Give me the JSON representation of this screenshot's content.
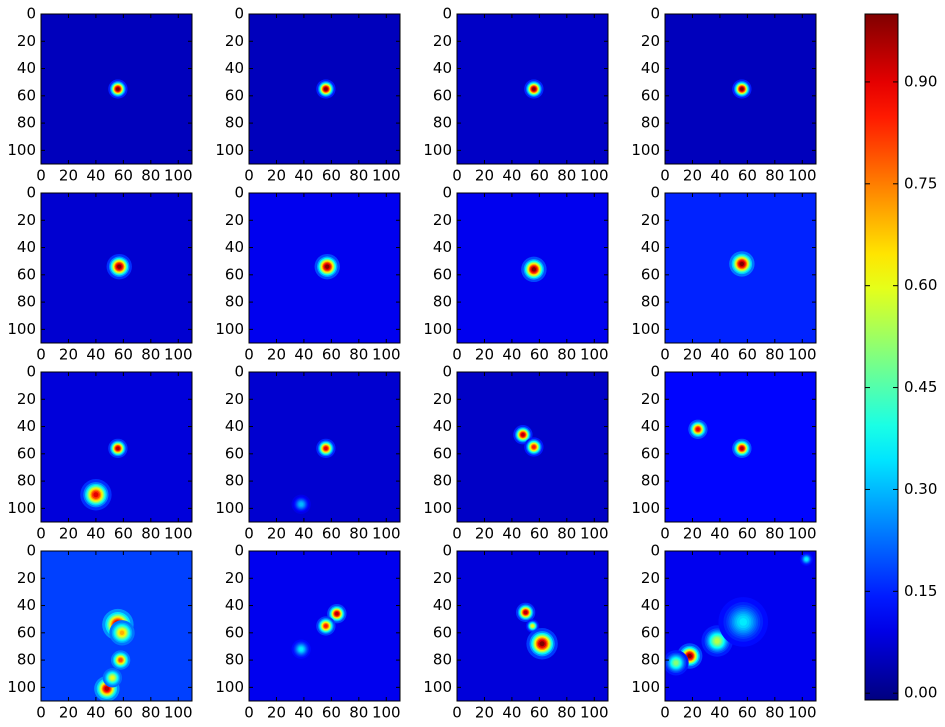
{
  "chart_data": {
    "type": "image",
    "colormap": "jet",
    "xlim": [
      0,
      110
    ],
    "ylim": [
      110,
      0
    ],
    "xticks": [
      0,
      20,
      40,
      60,
      80,
      100
    ],
    "yticks": [
      0,
      20,
      40,
      60,
      80,
      100
    ],
    "clim": [
      -0.01,
      1.0
    ],
    "cticks": [
      {
        "value": 0.0,
        "label": "0.00"
      },
      {
        "value": 0.15,
        "label": "0.15"
      },
      {
        "value": 0.3,
        "label": "0.30"
      },
      {
        "value": 0.45,
        "label": "0.45"
      },
      {
        "value": 0.6,
        "label": "0.60"
      },
      {
        "value": 0.75,
        "label": "0.75"
      },
      {
        "value": 0.9,
        "label": "0.90"
      }
    ],
    "panels": [
      {
        "background": 0.05,
        "spots": [
          {
            "x": 56,
            "y": 55,
            "value": 1.0,
            "radius": 3
          }
        ]
      },
      {
        "background": 0.05,
        "spots": [
          {
            "x": 56,
            "y": 55,
            "value": 1.0,
            "radius": 3
          }
        ]
      },
      {
        "background": 0.06,
        "spots": [
          {
            "x": 56,
            "y": 55,
            "value": 1.0,
            "radius": 3
          }
        ]
      },
      {
        "background": 0.05,
        "spots": [
          {
            "x": 56,
            "y": 55,
            "value": 1.0,
            "radius": 3
          }
        ]
      },
      {
        "background": 0.07,
        "spots": [
          {
            "x": 57,
            "y": 54,
            "value": 1.0,
            "radius": 4
          }
        ]
      },
      {
        "background": 0.1,
        "spots": [
          {
            "x": 57,
            "y": 54,
            "value": 1.0,
            "radius": 4
          }
        ]
      },
      {
        "background": 0.1,
        "spots": [
          {
            "x": 56,
            "y": 56,
            "value": 1.0,
            "radius": 4
          }
        ]
      },
      {
        "background": 0.15,
        "spots": [
          {
            "x": 56,
            "y": 52,
            "value": 1.0,
            "radius": 4
          }
        ]
      },
      {
        "background": 0.08,
        "spots": [
          {
            "x": 56,
            "y": 56,
            "value": 0.95,
            "radius": 3
          },
          {
            "x": 40,
            "y": 90,
            "value": 0.9,
            "radius": 5
          }
        ]
      },
      {
        "background": 0.07,
        "spots": [
          {
            "x": 56,
            "y": 56,
            "value": 0.9,
            "radius": 3
          },
          {
            "x": 38,
            "y": 97,
            "value": 0.3,
            "radius": 3
          }
        ]
      },
      {
        "background": 0.06,
        "spots": [
          {
            "x": 48,
            "y": 46,
            "value": 0.95,
            "radius": 3
          },
          {
            "x": 56,
            "y": 55,
            "value": 0.85,
            "radius": 3
          }
        ]
      },
      {
        "background": 0.12,
        "spots": [
          {
            "x": 24,
            "y": 42,
            "value": 0.9,
            "radius": 3
          },
          {
            "x": 56,
            "y": 56,
            "value": 0.95,
            "radius": 3
          }
        ]
      },
      {
        "background": 0.18,
        "spots": [
          {
            "x": 56,
            "y": 54,
            "value": 1.0,
            "radius": 5
          },
          {
            "x": 59,
            "y": 60,
            "value": 0.7,
            "radius": 4
          },
          {
            "x": 58,
            "y": 80,
            "value": 0.8,
            "radius": 3
          },
          {
            "x": 48,
            "y": 101,
            "value": 0.95,
            "radius": 4
          },
          {
            "x": 52,
            "y": 93,
            "value": 0.6,
            "radius": 3
          }
        ]
      },
      {
        "background": 0.1,
        "spots": [
          {
            "x": 64,
            "y": 46,
            "value": 0.95,
            "radius": 3
          },
          {
            "x": 56,
            "y": 55,
            "value": 0.85,
            "radius": 3
          },
          {
            "x": 38,
            "y": 72,
            "value": 0.35,
            "radius": 3
          }
        ]
      },
      {
        "background": 0.08,
        "spots": [
          {
            "x": 50,
            "y": 45,
            "value": 0.95,
            "radius": 3
          },
          {
            "x": 55,
            "y": 55,
            "value": 0.6,
            "radius": 2
          },
          {
            "x": 62,
            "y": 68,
            "value": 1.0,
            "radius": 5
          }
        ]
      },
      {
        "background": 0.1,
        "spots": [
          {
            "x": 18,
            "y": 77,
            "value": 1.0,
            "radius": 4
          },
          {
            "x": 8,
            "y": 82,
            "value": 0.5,
            "radius": 4
          },
          {
            "x": 38,
            "y": 66,
            "value": 0.55,
            "radius": 5
          },
          {
            "x": 57,
            "y": 52,
            "value": 0.35,
            "radius": 8
          },
          {
            "x": 103,
            "y": 6,
            "value": 0.35,
            "radius": 2
          }
        ]
      }
    ]
  }
}
